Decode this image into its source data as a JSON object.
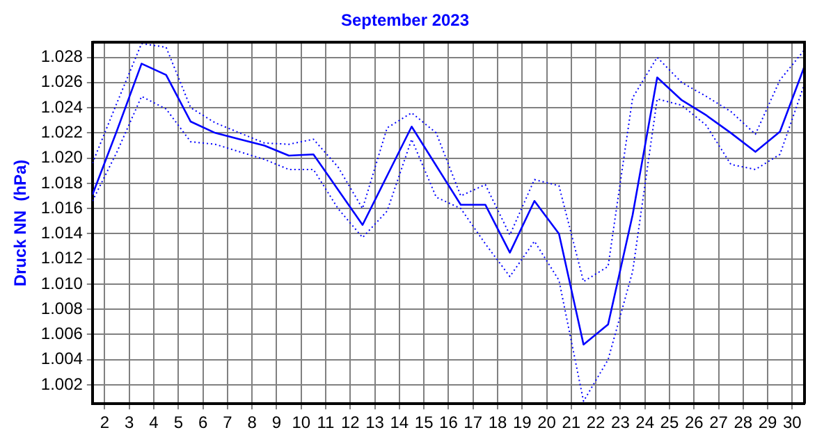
{
  "chart_data": {
    "type": "line",
    "title": "September 2023",
    "ylabel": "Druck NN  (hPa)",
    "x": [
      1.5,
      2.5,
      3.5,
      4.5,
      5.5,
      6.5,
      7.5,
      8.5,
      9.5,
      10.5,
      11.5,
      12.5,
      13.5,
      14.5,
      15.5,
      16.5,
      17.5,
      18.5,
      19.5,
      20.5,
      21.5,
      22.5,
      23.5,
      24.5,
      25.5,
      26.5,
      27.5,
      28.5,
      29.5,
      30.5
    ],
    "series": [
      {
        "color": "#0000ff",
        "line_style": "dotted",
        "values": [
          1.0196,
          1.0244,
          1.0291,
          1.0288,
          1.024,
          1.0228,
          1.022,
          1.0212,
          1.0211,
          1.0215,
          1.0193,
          1.016,
          1.0224,
          1.0236,
          1.022,
          1.017,
          1.0179,
          1.0139,
          1.0183,
          1.0178,
          1.0102,
          1.0114,
          1.0248,
          1.028,
          1.026,
          1.0249,
          1.0237,
          1.0219,
          1.0262,
          1.0286
        ]
      },
      {
        "color": "#0000ff",
        "line_style": "solid",
        "values": [
          1.0171,
          1.0222,
          1.0275,
          1.0266,
          1.0229,
          1.022,
          1.0215,
          1.021,
          1.0202,
          1.0203,
          1.0175,
          1.0147,
          1.0186,
          1.0225,
          1.0194,
          1.0163,
          1.0163,
          1.0125,
          1.0166,
          1.014,
          1.0052,
          1.0068,
          1.0155,
          1.0264,
          1.0246,
          1.0234,
          1.022,
          1.0205,
          1.0221,
          1.0273
        ]
      },
      {
        "color": "#0000ff",
        "line_style": "dotted",
        "values": [
          1.0166,
          1.0205,
          1.0249,
          1.0239,
          1.0213,
          1.0211,
          1.0205,
          1.0199,
          1.0191,
          1.0191,
          1.016,
          1.0137,
          1.0158,
          1.0215,
          1.0169,
          1.016,
          1.0132,
          1.0106,
          1.0134,
          1.0103,
          1.0007,
          1.004,
          1.011,
          1.0247,
          1.0242,
          1.0226,
          1.0195,
          1.0191,
          1.0203,
          1.0259
        ]
      }
    ],
    "xlim": [
      1.5,
      30.5
    ],
    "xticks": [
      2,
      3,
      4,
      5,
      6,
      7,
      8,
      9,
      10,
      11,
      12,
      13,
      14,
      15,
      16,
      17,
      18,
      19,
      20,
      21,
      22,
      23,
      24,
      25,
      26,
      27,
      28,
      29,
      30
    ],
    "ylim": [
      1.0005,
      1.0292
    ],
    "yticks": [
      1.002,
      1.004,
      1.006,
      1.008,
      {
        "value": 1.01,
        "label": "1.010"
      },
      1.012,
      1.014,
      1.016,
      1.018,
      {
        "value": 1.02,
        "label": "1.020"
      },
      1.022,
      1.024,
      1.026,
      1.028
    ],
    "grid": true,
    "legend": false,
    "marker": "none"
  }
}
